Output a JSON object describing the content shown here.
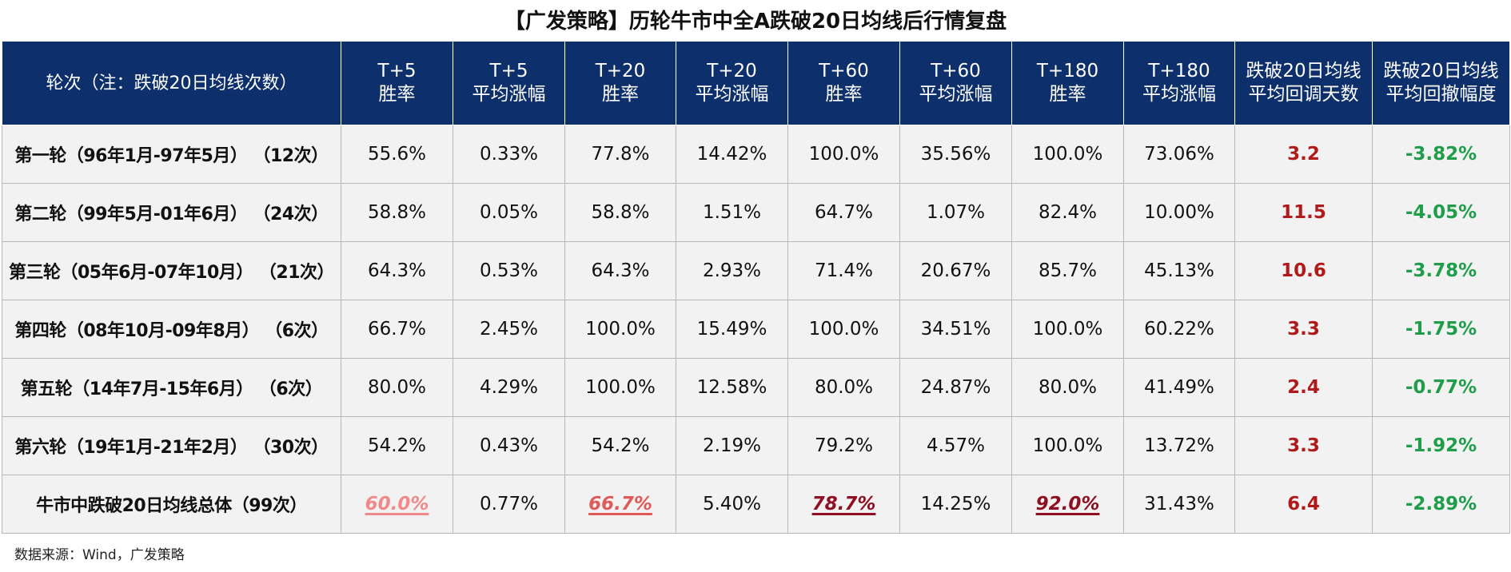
{
  "title": "【广发策略】历轮牛市中全A跌破20日均线后行情复盘",
  "header": {
    "round": "轮次（注：跌破20日均线次数）",
    "columns": [
      {
        "line1": "T+5",
        "line2": "胜率"
      },
      {
        "line1": "T+5",
        "line2": "平均涨幅"
      },
      {
        "line1": "T+20",
        "line2": "胜率"
      },
      {
        "line1": "T+20",
        "line2": "平均涨幅"
      },
      {
        "line1": "T+60",
        "line2": "胜率"
      },
      {
        "line1": "T+60",
        "line2": "平均涨幅"
      },
      {
        "line1": "T+180",
        "line2": "胜率"
      },
      {
        "line1": "T+180",
        "line2": "平均涨幅"
      },
      {
        "line1": "跌破20日均线",
        "line2": "平均回调天数"
      },
      {
        "line1": "跌破20日均线",
        "line2": "平均回撤幅度"
      }
    ]
  },
  "rows": [
    {
      "round": "第一轮（96年1月-97年5月）  （12次）",
      "values": [
        "55.6%",
        "0.33%",
        "77.8%",
        "14.42%",
        "100.0%",
        "35.56%",
        "100.0%",
        "73.06%",
        "3.2",
        "-3.82%"
      ]
    },
    {
      "round": "第二轮（99年5月-01年6月）  （24次）",
      "values": [
        "58.8%",
        "0.05%",
        "58.8%",
        "1.51%",
        "64.7%",
        "1.07%",
        "82.4%",
        "10.00%",
        "11.5",
        "-4.05%"
      ]
    },
    {
      "round": "第三轮（05年6月-07年10月）  （21次）",
      "values": [
        "64.3%",
        "0.53%",
        "64.3%",
        "2.93%",
        "71.4%",
        "20.67%",
        "85.7%",
        "45.13%",
        "10.6",
        "-3.78%"
      ]
    },
    {
      "round": "第四轮（08年10月-09年8月）  （6次）",
      "values": [
        "66.7%",
        "2.45%",
        "100.0%",
        "15.49%",
        "100.0%",
        "34.51%",
        "100.0%",
        "60.22%",
        "3.3",
        "-1.75%"
      ]
    },
    {
      "round": "第五轮（14年7月-15年6月）  （6次）",
      "values": [
        "80.0%",
        "4.29%",
        "100.0%",
        "12.58%",
        "80.0%",
        "24.87%",
        "80.0%",
        "41.49%",
        "2.4",
        "-0.77%"
      ]
    },
    {
      "round": "第六轮（19年1月-21年2月）  （30次）",
      "values": [
        "54.2%",
        "0.43%",
        "54.2%",
        "2.19%",
        "79.2%",
        "4.57%",
        "100.0%",
        "13.72%",
        "3.3",
        "-1.92%"
      ]
    }
  ],
  "total": {
    "round": "牛市中跌破20日均线总体（99次）",
    "values": [
      "60.0%",
      "0.77%",
      "66.7%",
      "5.40%",
      "78.7%",
      "14.25%",
      "92.0%",
      "31.43%",
      "6.4",
      "-2.89%"
    ]
  },
  "colors": {
    "header_bg": "#0d2f6b",
    "retrace_days": "#b01a1a",
    "drawdown": "#1f9d4a",
    "highlight_light": "#f08a8a",
    "highlight_mid": "#e15a5a",
    "highlight_dark": "#8f1022"
  },
  "source": "数据来源：Wind，广发策略"
}
